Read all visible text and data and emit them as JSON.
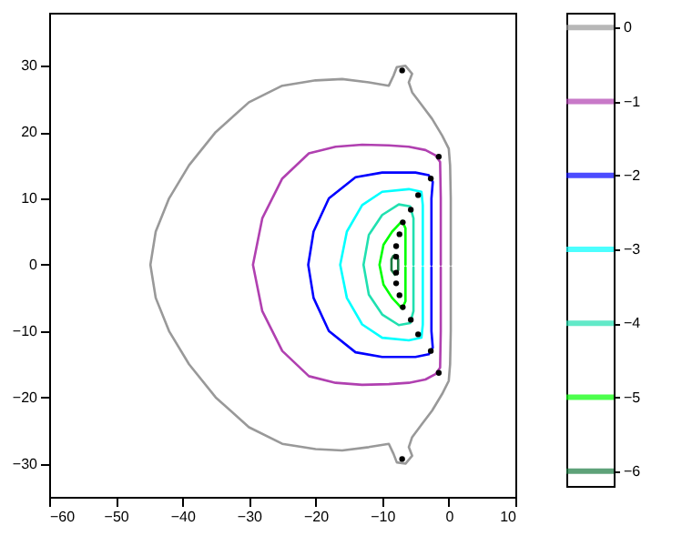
{
  "chart_data": {
    "type": "line",
    "xlim": [
      -60,
      10
    ],
    "ylim": [
      -35,
      38
    ],
    "xticks": [
      -60,
      -50,
      -40,
      -30,
      -20,
      -10,
      0,
      10
    ],
    "yticks": [
      -30,
      -20,
      -10,
      0,
      10,
      20,
      30
    ],
    "grid": false,
    "legend": "right",
    "marker": "none",
    "line_style": "solid",
    "series": [
      {
        "name": "0",
        "color": "#999999",
        "x": [
          0.3,
          0.3,
          0.2,
          0,
          -1,
          -2.5,
          -4,
          -5.5,
          -6,
          -5.5,
          -6.5,
          -7.8,
          -8.3,
          -9,
          -12,
          -16,
          -20,
          -25,
          -30,
          -35,
          -39,
          -42,
          -44,
          -44.8,
          -44,
          -42,
          -39,
          -35,
          -30,
          -25,
          -20,
          -16,
          -12,
          -9,
          -8.3,
          -7.8,
          -6.5,
          -5.5,
          -6,
          -5.5,
          -4,
          -2.5,
          -1,
          0,
          0.2,
          0.3,
          0.3
        ],
        "values": [
          0,
          10,
          15,
          17.5,
          19.5,
          22,
          24,
          26,
          27.5,
          28.8,
          30,
          29.8,
          28.5,
          27,
          27.5,
          28,
          27.8,
          27,
          24.5,
          20,
          15,
          10,
          5,
          0,
          -5,
          -10,
          -15,
          -20,
          -24.5,
          -27,
          -27.8,
          -28,
          -27.5,
          -27,
          -28.5,
          -29.8,
          -30,
          -28.8,
          -27.5,
          -26,
          -24,
          -22,
          -19.5,
          -17.5,
          -15,
          -10,
          -0.4
        ]
      },
      {
        "name": "−1",
        "color": "#b040b0",
        "x": [
          -1.2,
          -1.2,
          -1.3,
          -2,
          -3.5,
          -6,
          -9,
          -13,
          -17,
          -21,
          -25,
          -28,
          -29.4,
          -28,
          -25,
          -21,
          -17,
          -13,
          -9,
          -6,
          -3.5,
          -2,
          -1.3,
          -1.2,
          -1.2
        ],
        "values": [
          0,
          10,
          15.5,
          16.5,
          17.3,
          17.8,
          18,
          18.1,
          17.8,
          16.8,
          13,
          7,
          0,
          -7,
          -13,
          -16.8,
          -17.8,
          -18.1,
          -18,
          -17.8,
          -17.3,
          -16.5,
          -15.5,
          -10,
          -0.4
        ]
      },
      {
        "name": "−2",
        "color": "#0000ff",
        "x": [
          -2.6,
          -2.6,
          -2.4,
          -3,
          -5,
          -10,
          -14,
          -18,
          -20.3,
          -21.1,
          -20.3,
          -18,
          -14,
          -10,
          -5,
          -3,
          -2.4,
          -2.6,
          -2.6
        ],
        "values": [
          0,
          10,
          12.5,
          13.5,
          13.9,
          13.9,
          13.2,
          10,
          5,
          0,
          -5,
          -10,
          -13.2,
          -13.9,
          -13.9,
          -13.5,
          -12.5,
          -10,
          -0.4
        ]
      },
      {
        "name": "−3",
        "color": "#00ffff",
        "x": [
          -3.9,
          -3.9,
          -4.1,
          -6,
          -10,
          -13,
          -15.3,
          -16.3,
          -15.3,
          -13,
          -10,
          -6,
          -4.1,
          -3.9,
          -3.9
        ],
        "values": [
          0,
          9,
          11,
          11.4,
          11,
          9,
          5,
          0,
          -5,
          -9,
          -11,
          -11.4,
          -11,
          -9,
          -0.4
        ]
      },
      {
        "name": "−4",
        "color": "#20e0b0",
        "x": [
          -5.3,
          -5.3,
          -5.8,
          -7.5,
          -10,
          -12,
          -12.8,
          -12,
          -10,
          -7.5,
          -5.8,
          -5.3,
          -5.3
        ],
        "values": [
          0,
          7,
          8.8,
          9.1,
          7.5,
          4.5,
          0,
          -4.5,
          -7.5,
          -9.1,
          -8.8,
          -7,
          -0.4
        ]
      },
      {
        "name": "−5",
        "color": "#00ff00",
        "x": [
          -6.5,
          -6.5,
          -7,
          -8.5,
          -9.8,
          -10.4,
          -9.8,
          -8.5,
          -7,
          -6.5,
          -6.5
        ],
        "values": [
          0,
          5.5,
          6.6,
          5,
          3,
          0,
          -3,
          -5,
          -6.6,
          -5.5,
          -0.4
        ]
      },
      {
        "name": "−6",
        "color": "#1a7a40",
        "x": [
          -8.1,
          -7.6,
          -7.6,
          -8.1,
          -8.6,
          -8.6,
          -8.35
        ],
        "values": [
          1.5,
          0.8,
          -0.8,
          -1.5,
          -0.8,
          0.8,
          1.3
        ]
      },
      {
        "type": "scatter",
        "marker": "circle",
        "color": "#000000",
        "x": [
          -7,
          -7,
          -1.5,
          -1.5,
          -2.7,
          -2.7,
          -4.6,
          -4.6,
          -5.7,
          -5.7,
          -6.9,
          -6.9,
          -7.4,
          -7.4,
          -7.9,
          -7.9,
          -7.9,
          -7.9
        ],
        "values": [
          29.3,
          -29.3,
          16.3,
          -16.3,
          13,
          -13,
          10.5,
          -10.5,
          8.3,
          -8.3,
          6.4,
          -6.4,
          4.6,
          -4.6,
          2.8,
          -2.8,
          1.2,
          -1.2
        ]
      }
    ]
  }
}
